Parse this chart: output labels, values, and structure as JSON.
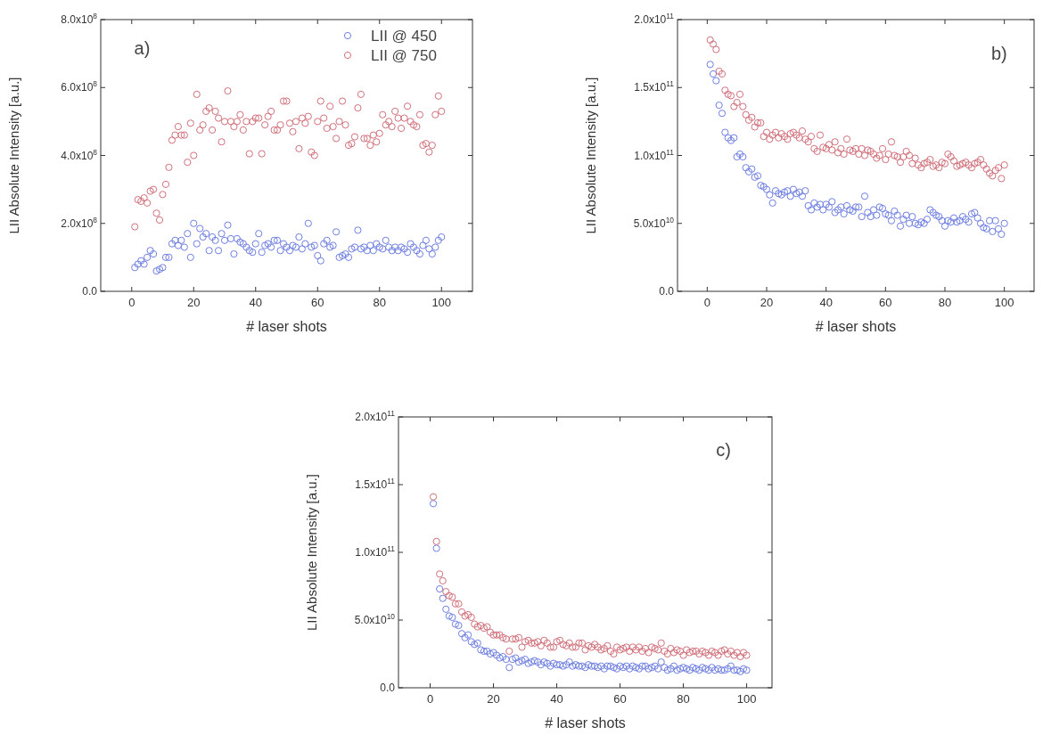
{
  "chart_data": [
    {
      "type": "scatter",
      "xlabel": "# laser shots",
      "ylabel": "LII Absolute Intensity [a.u.]",
      "annotations": [
        "a)"
      ],
      "marker": "circle",
      "legend": "top right",
      "xlim": [
        -10,
        110
      ],
      "xticks": [
        0,
        20,
        40,
        60,
        80,
        100
      ],
      "ylim": [
        0,
        800000000.0
      ],
      "yticks": [
        {
          "value": 0,
          "label": "0.0"
        },
        {
          "value": 200000000.0,
          "label": "2.0x10$^{8}$"
        },
        {
          "value": 400000000.0,
          "label": "4.0x10$^{8}$"
        },
        {
          "value": 600000000.0,
          "label": "6.0x10$^{8}$"
        },
        {
          "value": 800000000.0,
          "label": "8.0x10$^{8}$"
        }
      ],
      "x": [
        1,
        2,
        3,
        4,
        5,
        6,
        7,
        8,
        9,
        10,
        11,
        12,
        13,
        14,
        15,
        16,
        17,
        18,
        19,
        20,
        21,
        22,
        23,
        24,
        25,
        26,
        27,
        28,
        29,
        30,
        31,
        32,
        33,
        34,
        35,
        36,
        37,
        38,
        39,
        40,
        41,
        42,
        43,
        44,
        45,
        46,
        47,
        48,
        49,
        50,
        51,
        52,
        53,
        54,
        55,
        56,
        57,
        58,
        59,
        60,
        61,
        62,
        63,
        64,
        65,
        66,
        67,
        68,
        69,
        70,
        71,
        72,
        73,
        74,
        75,
        76,
        77,
        78,
        79,
        80,
        81,
        82,
        83,
        84,
        85,
        86,
        87,
        88,
        89,
        90,
        91,
        92,
        93,
        94,
        95,
        96,
        97,
        98,
        99,
        100
      ],
      "series": [
        {
          "name": "LII @ 450",
          "color": "#6f7fe0",
          "values": [
            70000000.0,
            80000000.0,
            90000000.0,
            80000000.0,
            100000000.0,
            120000000.0,
            110000000.0,
            60000000.0,
            65000000.0,
            70000000.0,
            100000000.0,
            100000000.0,
            140000000.0,
            150000000.0,
            135000000.0,
            150000000.0,
            130000000.0,
            170000000.0,
            100000000.0,
            200000000.0,
            140000000.0,
            185000000.0,
            160000000.0,
            170000000.0,
            120000000.0,
            160000000.0,
            150000000.0,
            120000000.0,
            170000000.0,
            150000000.0,
            195000000.0,
            155000000.0,
            110000000.0,
            155000000.0,
            145000000.0,
            140000000.0,
            130000000.0,
            120000000.0,
            115000000.0,
            140000000.0,
            170000000.0,
            115000000.0,
            135000000.0,
            140000000.0,
            130000000.0,
            150000000.0,
            150000000.0,
            120000000.0,
            140000000.0,
            130000000.0,
            120000000.0,
            135000000.0,
            130000000.0,
            160000000.0,
            125000000.0,
            140000000.0,
            200000000.0,
            130000000.0,
            135000000.0,
            105000000.0,
            90000000.0,
            140000000.0,
            150000000.0,
            130000000.0,
            135000000.0,
            175000000.0,
            100000000.0,
            105000000.0,
            110000000.0,
            100000000.0,
            125000000.0,
            130000000.0,
            180000000.0,
            125000000.0,
            130000000.0,
            120000000.0,
            135000000.0,
            120000000.0,
            140000000.0,
            130000000.0,
            125000000.0,
            150000000.0,
            130000000.0,
            120000000.0,
            130000000.0,
            120000000.0,
            130000000.0,
            125000000.0,
            115000000.0,
            140000000.0,
            130000000.0,
            120000000.0,
            110000000.0,
            135000000.0,
            150000000.0,
            125000000.0,
            110000000.0,
            130000000.0,
            150000000.0,
            160000000.0
          ]
        },
        {
          "name": "LII @ 750",
          "color": "#d0707a",
          "values": [
            190000000.0,
            270000000.0,
            265000000.0,
            275000000.0,
            260000000.0,
            295000000.0,
            300000000.0,
            230000000.0,
            210000000.0,
            285000000.0,
            315000000.0,
            365000000.0,
            445000000.0,
            460000000.0,
            485000000.0,
            460000000.0,
            460000000.0,
            380000000.0,
            495000000.0,
            400000000.0,
            580000000.0,
            475000000.0,
            490000000.0,
            530000000.0,
            540000000.0,
            475000000.0,
            530000000.0,
            510000000.0,
            440000000.0,
            500000000.0,
            590000000.0,
            500000000.0,
            485000000.0,
            500000000.0,
            520000000.0,
            475000000.0,
            500000000.0,
            405000000.0,
            500000000.0,
            510000000.0,
            510000000.0,
            405000000.0,
            490000000.0,
            515000000.0,
            530000000.0,
            475000000.0,
            475000000.0,
            490000000.0,
            560000000.0,
            560000000.0,
            495000000.0,
            470000000.0,
            500000000.0,
            420000000.0,
            510000000.0,
            495000000.0,
            515000000.0,
            410000000.0,
            400000000.0,
            500000000.0,
            560000000.0,
            510000000.0,
            480000000.0,
            545000000.0,
            485000000.0,
            450000000.0,
            500000000.0,
            560000000.0,
            490000000.0,
            430000000.0,
            435000000.0,
            455000000.0,
            540000000.0,
            580000000.0,
            450000000.0,
            450000000.0,
            430000000.0,
            460000000.0,
            440000000.0,
            465000000.0,
            520000000.0,
            490000000.0,
            500000000.0,
            485000000.0,
            530000000.0,
            510000000.0,
            480000000.0,
            510000000.0,
            545000000.0,
            500000000.0,
            490000000.0,
            485000000.0,
            520000000.0,
            430000000.0,
            435000000.0,
            410000000.0,
            430000000.0,
            520000000.0,
            575000000.0,
            530000000.0
          ]
        }
      ]
    },
    {
      "type": "scatter",
      "xlabel": "# laser shots",
      "ylabel": "LII Absolute Intensity [a.u.]",
      "annotations": [
        "b)"
      ],
      "marker": "circle",
      "xlim": [
        -10,
        110
      ],
      "xticks": [
        0,
        20,
        40,
        60,
        80,
        100
      ],
      "ylim": [
        0,
        200000000000.0
      ],
      "yticks": [
        {
          "value": 0,
          "label": "0.0"
        },
        {
          "value": 50000000000.0,
          "label": "5.0x10$^{10}$"
        },
        {
          "value": 100000000000.0,
          "label": "1.0x10$^{11}$"
        },
        {
          "value": 150000000000.0,
          "label": "1.5x10$^{11}$"
        },
        {
          "value": 200000000000.0,
          "label": "2.0x10$^{11}$"
        }
      ],
      "x": [
        1,
        2,
        3,
        4,
        5,
        6,
        7,
        8,
        9,
        10,
        11,
        12,
        13,
        14,
        15,
        16,
        17,
        18,
        19,
        20,
        21,
        22,
        23,
        24,
        25,
        26,
        27,
        28,
        29,
        30,
        31,
        32,
        33,
        34,
        35,
        36,
        37,
        38,
        39,
        40,
        41,
        42,
        43,
        44,
        45,
        46,
        47,
        48,
        49,
        50,
        51,
        52,
        53,
        54,
        55,
        56,
        57,
        58,
        59,
        60,
        61,
        62,
        63,
        64,
        65,
        66,
        67,
        68,
        69,
        70,
        71,
        72,
        73,
        74,
        75,
        76,
        77,
        78,
        79,
        80,
        81,
        82,
        83,
        84,
        85,
        86,
        87,
        88,
        89,
        90,
        91,
        92,
        93,
        94,
        95,
        96,
        97,
        98,
        99,
        100
      ],
      "series": [
        {
          "color": "#6f7fe0",
          "values": [
            167000000000.0,
            160000000000.0,
            155000000000.0,
            137000000000.0,
            131000000000.0,
            117000000000.0,
            113000000000.0,
            111000000000.0,
            113000000000.0,
            99000000000.0,
            101000000000.0,
            99000000000.0,
            91000000000.0,
            88000000000.0,
            90000000000.0,
            84000000000.0,
            85000000000.0,
            78000000000.0,
            77000000000.0,
            75000000000.0,
            71000000000.0,
            65000000000.0,
            74000000000.0,
            72000000000.0,
            71000000000.0,
            73000000000.0,
            74000000000.0,
            70000000000.0,
            75000000000.0,
            72000000000.0,
            73000000000.0,
            70000000000.0,
            74000000000.0,
            63000000000.0,
            60000000000.0,
            65000000000.0,
            62000000000.0,
            64000000000.0,
            60000000000.0,
            64000000000.0,
            62000000000.0,
            66000000000.0,
            58000000000.0,
            60000000000.0,
            62000000000.0,
            57000000000.0,
            63000000000.0,
            60000000000.0,
            59000000000.0,
            62000000000.0,
            62000000000.0,
            55000000000.0,
            70000000000.0,
            58000000000.0,
            55000000000.0,
            60000000000.0,
            56000000000.0,
            62000000000.0,
            61000000000.0,
            57000000000.0,
            56000000000.0,
            52000000000.0,
            59000000000.0,
            56000000000.0,
            48000000000.0,
            53000000000.0,
            56000000000.0,
            50000000000.0,
            55000000000.0,
            50000000000.0,
            49000000000.0,
            51000000000.0,
            50000000000.0,
            53000000000.0,
            60000000000.0,
            58000000000.0,
            56000000000.0,
            55000000000.0,
            52000000000.0,
            48000000000.0,
            52000000000.0,
            51000000000.0,
            54000000000.0,
            51000000000.0,
            52000000000.0,
            55000000000.0,
            53000000000.0,
            51000000000.0,
            57000000000.0,
            58000000000.0,
            54000000000.0,
            50000000000.0,
            47000000000.0,
            46000000000.0,
            52000000000.0,
            44000000000.0,
            52000000000.0,
            46000000000.0,
            42000000000.0,
            50000000000.0
          ]
        },
        {
          "color": "#d0707a",
          "values": [
            185000000000.0,
            182000000000.0,
            178000000000.0,
            162000000000.0,
            160000000000.0,
            148000000000.0,
            145000000000.0,
            144000000000.0,
            136000000000.0,
            139000000000.0,
            145000000000.0,
            136000000000.0,
            130000000000.0,
            126000000000.0,
            128000000000.0,
            121000000000.0,
            124000000000.0,
            124000000000.0,
            114000000000.0,
            117000000000.0,
            112000000000.0,
            115000000000.0,
            117000000000.0,
            113000000000.0,
            116000000000.0,
            114000000000.0,
            112000000000.0,
            116000000000.0,
            117000000000.0,
            115000000000.0,
            113000000000.0,
            118000000000.0,
            112000000000.0,
            110000000000.0,
            114000000000.0,
            105000000000.0,
            103000000000.0,
            115000000000.0,
            106000000000.0,
            105000000000.0,
            108000000000.0,
            104000000000.0,
            110000000000.0,
            102000000000.0,
            105000000000.0,
            101000000000.0,
            112000000000.0,
            104000000000.0,
            103000000000.0,
            105000000000.0,
            101000000000.0,
            105000000000.0,
            100000000000.0,
            104000000000.0,
            103000000000.0,
            101000000000.0,
            98000000000.0,
            100000000000.0,
            105000000000.0,
            97000000000.0,
            101000000000.0,
            110000000000.0,
            100000000000.0,
            99000000000.0,
            95000000000.0,
            99000000000.0,
            103000000000.0,
            100000000000.0,
            94000000000.0,
            98000000000.0,
            93000000000.0,
            91000000000.0,
            94000000000.0,
            95000000000.0,
            97000000000.0,
            92000000000.0,
            93000000000.0,
            91000000000.0,
            95000000000.0,
            94000000000.0,
            101000000000.0,
            99000000000.0,
            96000000000.0,
            92000000000.0,
            93000000000.0,
            94000000000.0,
            95000000000.0,
            93000000000.0,
            91000000000.0,
            94000000000.0,
            95000000000.0,
            97000000000.0,
            93000000000.0,
            90000000000.0,
            87000000000.0,
            85000000000.0,
            89000000000.0,
            91000000000.0,
            83000000000.0,
            93000000000.0
          ]
        }
      ]
    },
    {
      "type": "scatter",
      "xlabel": "# laser shots",
      "ylabel": "LII Absolute Intensity [a.u.]",
      "annotations": [
        "c)"
      ],
      "marker": "circle",
      "xlim": [
        -10,
        108
      ],
      "xticks": [
        0,
        20,
        40,
        60,
        80,
        100
      ],
      "ylim": [
        0,
        200000000000.0
      ],
      "yticks": [
        {
          "value": 0,
          "label": "0.0"
        },
        {
          "value": 50000000000.0,
          "label": "5.0x10$^{10}$"
        },
        {
          "value": 100000000000.0,
          "label": "1.0x10$^{11}$"
        },
        {
          "value": 150000000000.0,
          "label": "1.5x10$^{11}$"
        },
        {
          "value": 200000000000.0,
          "label": "2.0x10$^{11}$"
        }
      ],
      "x": [
        1,
        2,
        3,
        4,
        5,
        6,
        7,
        8,
        9,
        10,
        11,
        12,
        13,
        14,
        15,
        16,
        17,
        18,
        19,
        20,
        21,
        22,
        23,
        24,
        25,
        26,
        27,
        28,
        29,
        30,
        31,
        32,
        33,
        34,
        35,
        36,
        37,
        38,
        39,
        40,
        41,
        42,
        43,
        44,
        45,
        46,
        47,
        48,
        49,
        50,
        51,
        52,
        53,
        54,
        55,
        56,
        57,
        58,
        59,
        60,
        61,
        62,
        63,
        64,
        65,
        66,
        67,
        68,
        69,
        70,
        71,
        72,
        73,
        74,
        75,
        76,
        77,
        78,
        79,
        80,
        81,
        82,
        83,
        84,
        85,
        86,
        87,
        88,
        89,
        90,
        91,
        92,
        93,
        94,
        95,
        96,
        97,
        98,
        99,
        100
      ],
      "series": [
        {
          "color": "#6f7fe0",
          "values": [
            136000000000.0,
            103000000000.0,
            73000000000.0,
            66000000000.0,
            58000000000.0,
            53000000000.0,
            52000000000.0,
            47000000000.0,
            46000000000.0,
            40000000000.0,
            37000000000.0,
            39000000000.0,
            34000000000.0,
            32000000000.0,
            33000000000.0,
            28000000000.0,
            27000000000.0,
            27000000000.0,
            25000000000.0,
            26000000000.0,
            24000000000.0,
            22000000000.0,
            23000000000.0,
            21000000000.0,
            15000000000.0,
            21000000000.0,
            22000000000.0,
            19000000000.0,
            20000000000.0,
            21000000000.0,
            18000000000.0,
            19000000000.0,
            20000000000.0,
            19000000000.0,
            17000000000.0,
            19000000000.0,
            18000000000.0,
            16000000000.0,
            18000000000.0,
            17000000000.0,
            17000000000.0,
            16000000000.0,
            17000000000.0,
            19000000000.0,
            16000000000.0,
            17000000000.0,
            16000000000.0,
            16000000000.0,
            15000000000.0,
            17000000000.0,
            16000000000.0,
            16000000000.0,
            15000000000.0,
            16000000000.0,
            14000000000.0,
            16000000000.0,
            16000000000.0,
            15000000000.0,
            14000000000.0,
            16000000000.0,
            15000000000.0,
            16000000000.0,
            14000000000.0,
            16000000000.0,
            15000000000.0,
            14000000000.0,
            16000000000.0,
            16000000000.0,
            14000000000.0,
            15000000000.0,
            16000000000.0,
            14000000000.0,
            19000000000.0,
            15000000000.0,
            13000000000.0,
            14000000000.0,
            16000000000.0,
            13000000000.0,
            14000000000.0,
            15000000000.0,
            14000000000.0,
            13000000000.0,
            15000000000.0,
            14000000000.0,
            13000000000.0,
            15000000000.0,
            14000000000.0,
            13000000000.0,
            15000000000.0,
            13000000000.0,
            14000000000.0,
            13000000000.0,
            13000000000.0,
            14000000000.0,
            16000000000.0,
            13000000000.0,
            13000000000.0,
            12000000000.0,
            14000000000.0,
            13000000000.0
          ]
        },
        {
          "color": "#d0707a",
          "values": [
            141000000000.0,
            108000000000.0,
            84000000000.0,
            79000000000.0,
            71000000000.0,
            68000000000.0,
            67000000000.0,
            62000000000.0,
            62000000000.0,
            56000000000.0,
            53000000000.0,
            54000000000.0,
            52000000000.0,
            47000000000.0,
            45000000000.0,
            46000000000.0,
            44000000000.0,
            45000000000.0,
            41000000000.0,
            39000000000.0,
            39000000000.0,
            39000000000.0,
            37000000000.0,
            36000000000.0,
            27000000000.0,
            36000000000.0,
            36000000000.0,
            37000000000.0,
            30000000000.0,
            34000000000.0,
            35000000000.0,
            33000000000.0,
            33000000000.0,
            34000000000.0,
            31000000000.0,
            35000000000.0,
            33000000000.0,
            30000000000.0,
            30000000000.0,
            34000000000.0,
            35000000000.0,
            32000000000.0,
            31000000000.0,
            33000000000.0,
            30000000000.0,
            30000000000.0,
            33000000000.0,
            33000000000.0,
            28000000000.0,
            31000000000.0,
            30000000000.0,
            32000000000.0,
            30000000000.0,
            28000000000.0,
            29000000000.0,
            31000000000.0,
            27000000000.0,
            25000000000.0,
            30000000000.0,
            28000000000.0,
            29000000000.0,
            30000000000.0,
            27000000000.0,
            30000000000.0,
            28000000000.0,
            30000000000.0,
            27000000000.0,
            29000000000.0,
            26000000000.0,
            30000000000.0,
            29000000000.0,
            28000000000.0,
            33000000000.0,
            27000000000.0,
            25000000000.0,
            29000000000.0,
            26000000000.0,
            28000000000.0,
            27000000000.0,
            24000000000.0,
            28000000000.0,
            26000000000.0,
            27000000000.0,
            27000000000.0,
            25000000000.0,
            27000000000.0,
            26000000000.0,
            24000000000.0,
            27000000000.0,
            26000000000.0,
            24000000000.0,
            27000000000.0,
            28000000000.0,
            25000000000.0,
            27000000000.0,
            24000000000.0,
            26000000000.0,
            23000000000.0,
            26000000000.0,
            24000000000.0
          ]
        }
      ]
    }
  ]
}
